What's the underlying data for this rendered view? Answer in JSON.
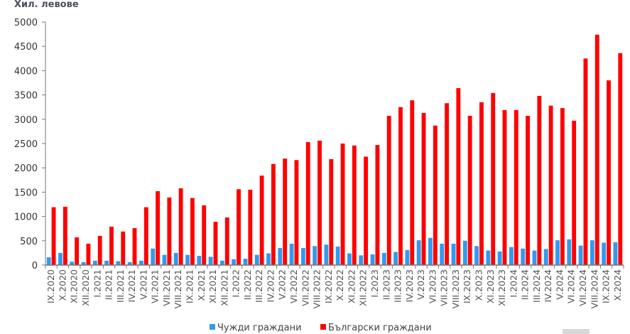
{
  "chart_data": {
    "type": "bar",
    "title": "",
    "xlabel": "",
    "ylabel": "Хил. левове",
    "ylim": [
      0,
      5000
    ],
    "yticks": [
      "0",
      "500",
      "1000",
      "1500",
      "2000",
      "2500",
      "3000",
      "3500",
      "4000",
      "4500",
      "5000"
    ],
    "grid": false,
    "legend_position": "bottom",
    "categories": [
      "IX.2020",
      "X.2020",
      "XI.2020",
      "XII.2020",
      "I.2021",
      "II.2021",
      "III.2021",
      "IV.2021",
      "V.2021",
      "VI.2021",
      "VII.2021",
      "VIII.2021",
      "IX.2021",
      "X.2021",
      "XI.2021",
      "XII.2021",
      "I.2022",
      "II.2022",
      "III.2022",
      "IV.2022",
      "V.2022",
      "VI.2022",
      "VII.2022",
      "VIII.2022",
      "IX.2022",
      "X.2022",
      "XI.2022",
      "XII.2022",
      "I.2023",
      "II.2023",
      "III.2023",
      "IV.2023",
      "V.2023",
      "VI.2023",
      "VII.2023",
      "VIII.2023",
      "IX.2023",
      "X.2023",
      "XI.2023",
      "XII.2023",
      "I.2024",
      "II.2024",
      "III.2024",
      "IV.2024",
      "V.2024",
      "VI.2024",
      "VII.2024",
      "VIII.2024",
      "IX.2024",
      "X.2024"
    ],
    "series": [
      {
        "name": "Чужди граждани",
        "color": "#3399ee",
        "values": [
          160,
          250,
          70,
          60,
          90,
          90,
          80,
          60,
          90,
          340,
          210,
          250,
          210,
          190,
          170,
          90,
          120,
          130,
          210,
          240,
          350,
          440,
          350,
          390,
          420,
          380,
          240,
          200,
          220,
          250,
          270,
          310,
          510,
          560,
          440,
          440,
          500,
          390,
          300,
          280,
          370,
          340,
          300,
          330,
          510,
          530,
          400,
          510,
          460,
          470
        ]
      },
      {
        "name": "Български граждани",
        "color": "#ff0000",
        "values": [
          1190,
          1200,
          570,
          440,
          600,
          790,
          690,
          760,
          1190,
          1520,
          1390,
          1580,
          1380,
          1230,
          890,
          980,
          1560,
          1550,
          1840,
          2080,
          2190,
          2160,
          2530,
          2560,
          2180,
          2500,
          2460,
          2230,
          2470,
          3070,
          3250,
          3390,
          3130,
          2870,
          3330,
          3640,
          3070,
          3350,
          3540,
          3190,
          3190,
          3070,
          3480,
          3280,
          3230,
          2970,
          4250,
          4740,
          3800,
          4360
        ]
      }
    ]
  }
}
